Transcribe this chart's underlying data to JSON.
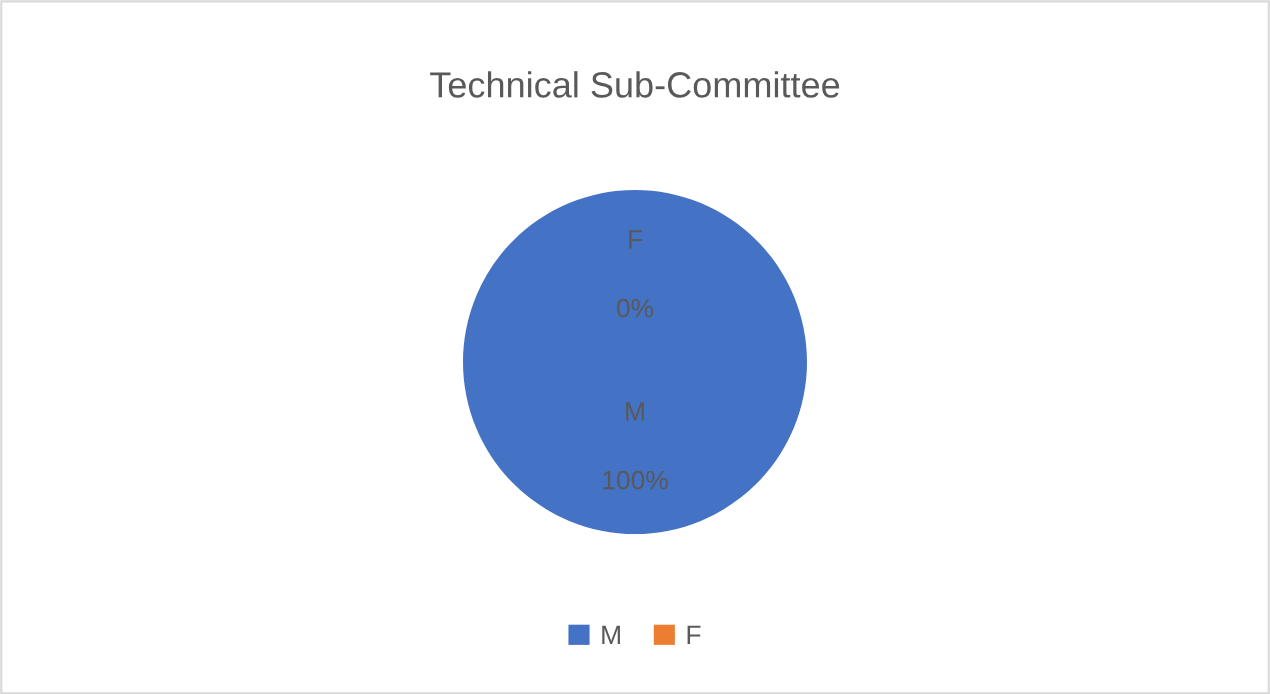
{
  "chart_data": {
    "type": "pie",
    "title": "Technical Sub-Committee",
    "categories": [
      "M",
      "F"
    ],
    "values": [
      100,
      0
    ],
    "colors": [
      "#4472c4",
      "#ed7d31"
    ],
    "value_labels": [
      "100%",
      "0%"
    ],
    "legend": "bottom"
  }
}
